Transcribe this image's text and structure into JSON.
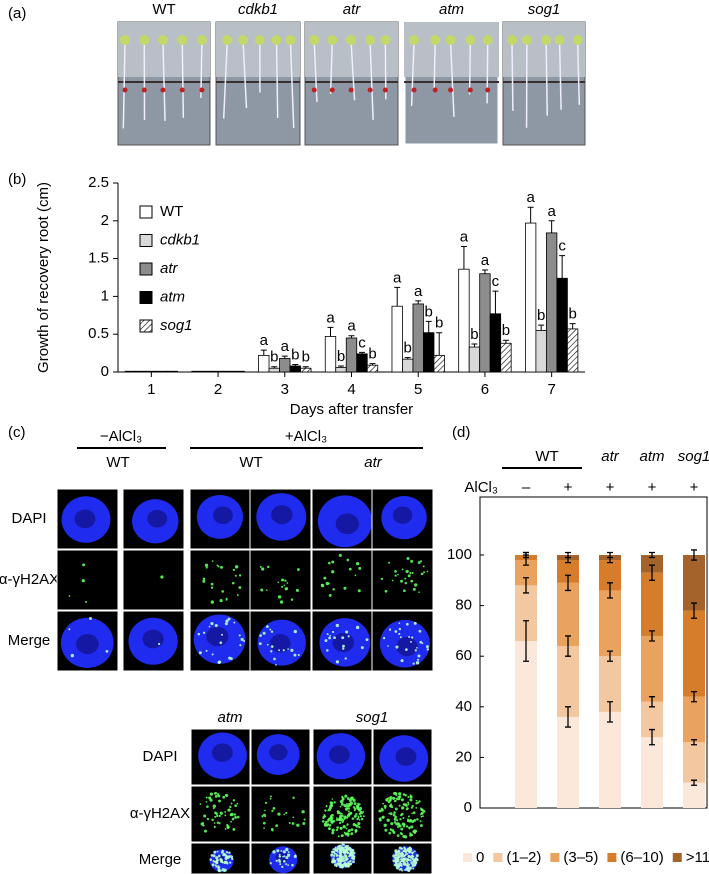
{
  "panel_labels": [
    "(a)",
    "(b)",
    "(c)",
    "(d)"
  ],
  "photos": {
    "labels": [
      "WT",
      "cdkb1",
      "atr",
      "atm",
      "sog1"
    ]
  },
  "microscopy": {
    "top": {
      "conditions": [
        "−AlCl₃",
        "+AlCl₃"
      ],
      "genotypes": [
        "WT",
        "WT",
        "atr"
      ],
      "rows": [
        "DAPI",
        "α-γH2AX",
        "Merge"
      ]
    },
    "bottom": {
      "genotypes": [
        "atm",
        "sog1"
      ],
      "rows": [
        "DAPI",
        "α-γH2AX",
        "Merge"
      ]
    }
  },
  "chart_data": [
    {
      "type": "bar",
      "ylabel": "Growth of recovery root (cm)",
      "xlabel": "Days after transfer",
      "categories": [
        "1",
        "2",
        "3",
        "4",
        "5",
        "6",
        "7"
      ],
      "ylim": [
        0,
        2.5
      ],
      "yticks": [
        0,
        0.5,
        1,
        1.5,
        2,
        2.5
      ],
      "legend": "upper left",
      "series": [
        {
          "name": "WT",
          "color": "#ffffff",
          "values": [
            0.01,
            0.01,
            0.22,
            0.47,
            0.87,
            1.36,
            1.97
          ],
          "errors": [
            null,
            null,
            0.07,
            0.12,
            0.25,
            0.3,
            0.21
          ],
          "letters": [
            null,
            null,
            "a",
            "a",
            "a",
            "a",
            "a"
          ]
        },
        {
          "name": "cdkb1",
          "color": "#d9d9d9",
          "values": [
            0.01,
            0.01,
            0.05,
            0.06,
            0.17,
            0.33,
            0.55
          ],
          "errors": [
            null,
            null,
            0.02,
            0.02,
            0.02,
            0.04,
            0.07
          ],
          "letters": [
            null,
            null,
            "b",
            "b",
            "b",
            "b",
            "b"
          ]
        },
        {
          "name": "atr",
          "color": "#8c8c8c",
          "values": [
            0.01,
            0.01,
            0.18,
            0.45,
            0.9,
            1.3,
            1.84
          ],
          "errors": [
            null,
            null,
            0.03,
            0.03,
            0.04,
            0.05,
            0.16
          ],
          "letters": [
            null,
            null,
            "a",
            "a",
            "a",
            "a",
            "a"
          ]
        },
        {
          "name": "atm",
          "color": "#000000",
          "values": [
            0.01,
            0.01,
            0.08,
            0.24,
            0.52,
            0.77,
            1.24
          ],
          "errors": [
            null,
            null,
            0.02,
            0.02,
            0.15,
            0.3,
            0.3
          ],
          "letters": [
            null,
            null,
            "b",
            "c",
            "b",
            "c",
            "c"
          ]
        },
        {
          "name": "sog1",
          "color": "#ffffff",
          "hatch": true,
          "values": [
            0.01,
            0.01,
            0.05,
            0.09,
            0.22,
            0.38,
            0.57
          ],
          "errors": [
            null,
            null,
            0.02,
            0.02,
            0.3,
            0.04,
            0.07
          ],
          "letters": [
            null,
            null,
            "b",
            "b",
            "b",
            "b",
            "b"
          ]
        }
      ]
    },
    {
      "type": "stacked_bar",
      "categories": [
        "WT",
        null,
        "atr",
        "atm",
        "sog1"
      ],
      "treatment_label": "AlCl₃",
      "treatment": [
        "–",
        "+",
        "+",
        "+",
        "+"
      ],
      "ylim": [
        0,
        100
      ],
      "yticks": [
        0,
        20,
        40,
        60,
        80,
        100
      ],
      "legend": "bottom",
      "series": [
        {
          "name": "0",
          "color": "#fbe8da",
          "values": [
            66,
            36,
            38,
            28,
            10
          ],
          "errors": [
            8,
            4,
            4,
            3,
            1
          ]
        },
        {
          "name": "(1–2)",
          "color": "#f3c8a0",
          "values": [
            22,
            28,
            22,
            14,
            16
          ],
          "errors": [
            3,
            4,
            2,
            2,
            1
          ]
        },
        {
          "name": "(3–5)",
          "color": "#e9a35e",
          "values": [
            10,
            25,
            26,
            26,
            18
          ],
          "errors": [
            2,
            3,
            3,
            2,
            2
          ]
        },
        {
          "name": "(6–10)",
          "color": "#d57d2a",
          "values": [
            2,
            9,
            12,
            25,
            34
          ],
          "errors": [
            1,
            1,
            1,
            3,
            3
          ]
        },
        {
          "name": ">11",
          "color": "#a3632a",
          "values": [
            0,
            2,
            2,
            7,
            22
          ],
          "errors": [
            1,
            1,
            1,
            1,
            2
          ]
        }
      ]
    }
  ]
}
